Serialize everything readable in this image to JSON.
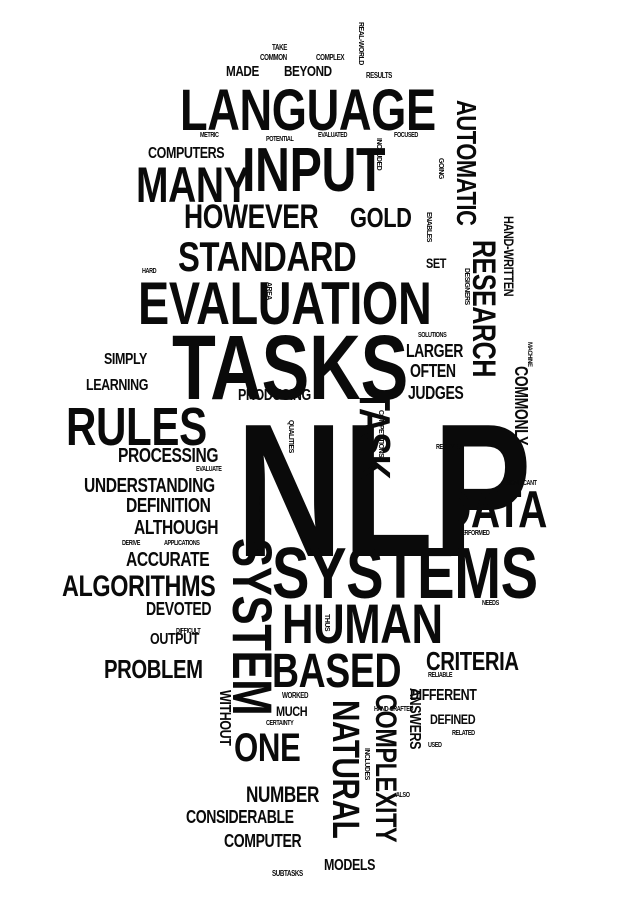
{
  "words": [
    "NLP",
    "SYSTEMS",
    "TASKS",
    "EVALUATION",
    "LANGUAGE",
    "INPUT",
    "MANY",
    "STANDARD",
    "HOWEVER",
    "RULES",
    "DATA",
    "HUMAN",
    "SYSTEM",
    "TASK",
    "BASED",
    "RESEARCH",
    "AUTOMATIC",
    "ALGORITHMS",
    "PROBLEM",
    "ONE",
    "NATURAL",
    "COMPLEXITY",
    "CRITERIA",
    "GOLD",
    "PROCESSING",
    "UNDERSTANDING",
    "DEFINITION",
    "ALTHOUGH",
    "ACCURATE",
    "DEVOTED",
    "OUTPUT",
    "NUMBER",
    "CONSIDERABLE",
    "COMPUTER",
    "MODELS",
    "COMPUTERS",
    "MADE",
    "BEYOND",
    "SIMPLY",
    "LEARNING",
    "PRODUCING",
    "LARGER",
    "OFTEN",
    "JUDGES",
    "COMMONLY",
    "HAND-WRITTEN",
    "DIFFERENT",
    "DEFINED",
    "ANSWERS",
    "WITHOUT",
    "MUCH",
    "SET",
    "SOLUTIONS",
    "TAKE",
    "COMMON",
    "COMPLEX",
    "REAL-WORLD",
    "RESULTS",
    "METRIC",
    "POTENTIAL",
    "EVALUATED",
    "INCLUDED",
    "FOCUSED",
    "GOING",
    "ENABLES",
    "DESIGNERS",
    "AREA",
    "HARD",
    "MACHINE",
    "COMPETITIONS",
    "QUALITIES",
    "RECEIVED",
    "EVALUATE",
    "SIGNIFICANT",
    "SOLVING",
    "PERFORMED",
    "DERIVE",
    "APPLICATIONS",
    "NEEDS",
    "THUS",
    "DIFFICULT",
    "RELIABLE",
    "WORKED",
    "CERTAINTY",
    "HAND-CRAFTED",
    "RELATED",
    "USED",
    "INCLUDES",
    "ALSO",
    "SUBTASKS"
  ]
}
